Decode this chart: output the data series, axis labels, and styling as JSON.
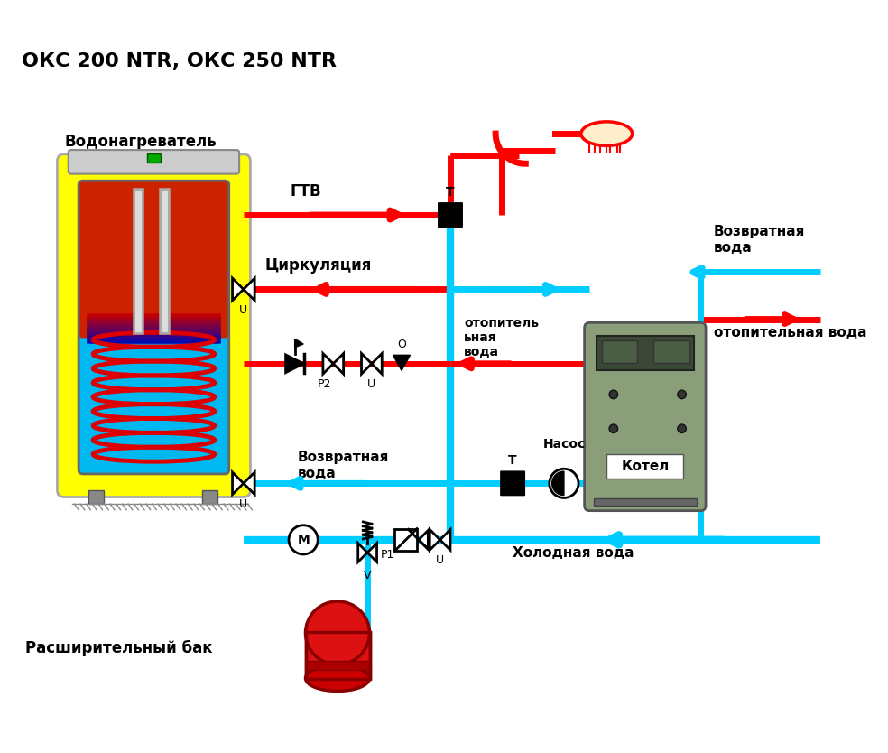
{
  "title": "ОКС 200 NTR, ОКС 250 NTR",
  "bg_color": "#ffffff",
  "red": "#ff0000",
  "cyan": "#00ccff",
  "label_vodonagrevatель": "Водонагреватель",
  "label_gtv": "ГТВ",
  "label_tsirk": "Циркуляция",
  "label_vozvr1": "Возвратная\nвода",
  "label_vozvr2": "Возвратная\nвода",
  "label_otopit1": "отопитель\nьная\nвода",
  "label_otopit2": "отопительная вода",
  "label_holod": "Холодная вода",
  "label_nasos": "Насос",
  "label_kotel": "Котел",
  "label_rasshir": "Расширительный бак"
}
